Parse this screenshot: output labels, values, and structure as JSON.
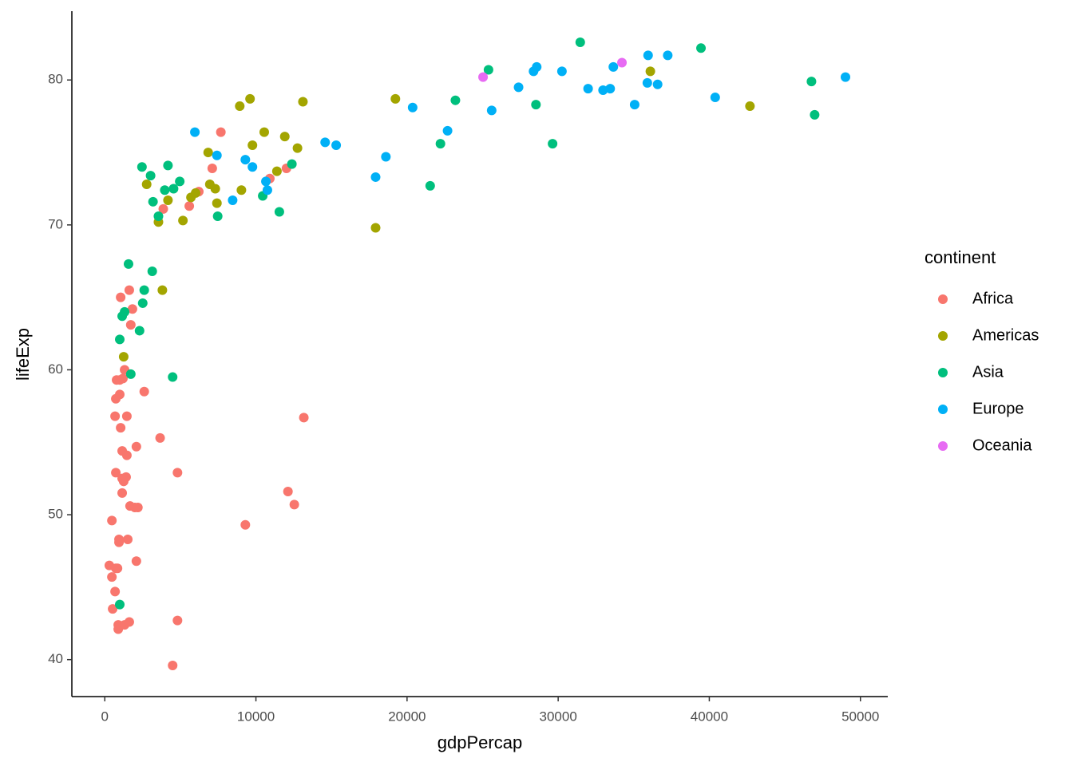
{
  "chart_data": {
    "type": "scatter",
    "x_label": "gdpPercap",
    "y_label": "lifeExp",
    "legend_title": "continent",
    "legend": "right",
    "grid": false,
    "xlim": [
      -2180,
      51810
    ],
    "ylim": [
      37.45,
      84.75
    ],
    "xticks": [
      0,
      10000,
      20000,
      30000,
      40000,
      50000
    ],
    "yticks": [
      40,
      50,
      60,
      70,
      80
    ],
    "series": [
      {
        "name": "Africa",
        "color": "#F8766D",
        "x": [
          300,
          470,
          470,
          520,
          680,
          730,
          840,
          730,
          680,
          730,
          780,
          890,
          890,
          940,
          940,
          990,
          990,
          1050,
          1050,
          1150,
          1250,
          1150,
          1150,
          1200,
          1310,
          1310,
          1410,
          1460,
          1460,
          1520,
          1620,
          1620,
          1670,
          1720,
          1830,
          1990,
          2090,
          2090,
          2190,
          2610,
          3660,
          3870,
          4490,
          4810,
          4810,
          5590,
          6220,
          7110,
          7680,
          9300,
          10920,
          12020,
          12120,
          12540,
          13170
        ],
        "y": [
          46.5,
          45.7,
          49.6,
          43.5,
          44.7,
          46.3,
          46.3,
          52.9,
          56.8,
          58.0,
          59.3,
          42.4,
          42.1,
          48.3,
          48.1,
          58.3,
          59.3,
          65.0,
          56.0,
          52.5,
          52.3,
          54.4,
          51.5,
          59.4,
          60.0,
          42.4,
          52.6,
          56.8,
          54.1,
          48.3,
          65.5,
          42.6,
          50.6,
          63.1,
          64.2,
          50.5,
          54.7,
          46.8,
          50.5,
          58.5,
          55.3,
          71.1,
          39.6,
          52.9,
          42.7,
          71.3,
          72.3,
          73.9,
          76.4,
          49.3,
          73.2,
          73.9,
          51.6,
          50.7,
          56.7
        ]
      },
      {
        "name": "Americas",
        "color": "#A3A500",
        "x": [
          1250,
          2770,
          3550,
          3810,
          4180,
          5170,
          5700,
          6010,
          6840,
          6950,
          7310,
          7420,
          8930,
          9040,
          9610,
          9770,
          10550,
          11390,
          11910,
          12750,
          13110,
          17920,
          19230,
          36100,
          42690
        ],
        "y": [
          60.9,
          72.8,
          70.2,
          65.5,
          71.7,
          70.3,
          71.9,
          72.2,
          75.0,
          72.8,
          72.5,
          71.5,
          78.2,
          72.4,
          78.7,
          75.5,
          76.4,
          73.7,
          76.1,
          75.3,
          78.5,
          69.8,
          78.7,
          80.6,
          78.2
        ]
      },
      {
        "name": "Asia",
        "color": "#00BF7D",
        "x": [
          990,
          990,
          1150,
          1310,
          1570,
          1720,
          2300,
          2460,
          2510,
          2610,
          3030,
          3140,
          3190,
          3550,
          3970,
          4180,
          4490,
          4550,
          4960,
          7470,
          10450,
          11550,
          12380,
          21530,
          22210,
          23200,
          25390,
          28530,
          29630,
          31460,
          39450,
          46760,
          46970
        ],
        "y": [
          43.8,
          62.1,
          63.7,
          64.0,
          67.3,
          59.7,
          62.7,
          74.0,
          64.6,
          65.5,
          73.4,
          66.8,
          71.6,
          70.6,
          72.4,
          74.1,
          59.5,
          72.5,
          73.0,
          70.6,
          72.0,
          70.9,
          74.2,
          72.7,
          75.6,
          78.6,
          80.7,
          78.3,
          75.6,
          82.6,
          82.2,
          79.9,
          77.6
        ]
      },
      {
        "name": "Europe",
        "color": "#00B0F6",
        "x": [
          5960,
          7420,
          8460,
          9300,
          9770,
          10660,
          10760,
          14580,
          15310,
          17920,
          18600,
          20370,
          22680,
          25600,
          27380,
          28370,
          28580,
          30250,
          31980,
          32970,
          33440,
          33650,
          35060,
          35900,
          35950,
          36580,
          37250,
          40390,
          49010
        ],
        "y": [
          76.4,
          74.8,
          71.7,
          74.5,
          74.0,
          73.0,
          72.4,
          75.7,
          75.5,
          73.3,
          74.7,
          78.1,
          76.5,
          77.9,
          79.5,
          80.6,
          80.9,
          80.6,
          79.4,
          79.3,
          79.4,
          80.9,
          78.3,
          79.8,
          81.7,
          79.7,
          81.7,
          78.8,
          80.2
        ]
      },
      {
        "name": "Oceania",
        "color": "#E76BF3",
        "x": [
          25030,
          34220
        ],
        "y": [
          80.2,
          81.2
        ]
      }
    ]
  }
}
